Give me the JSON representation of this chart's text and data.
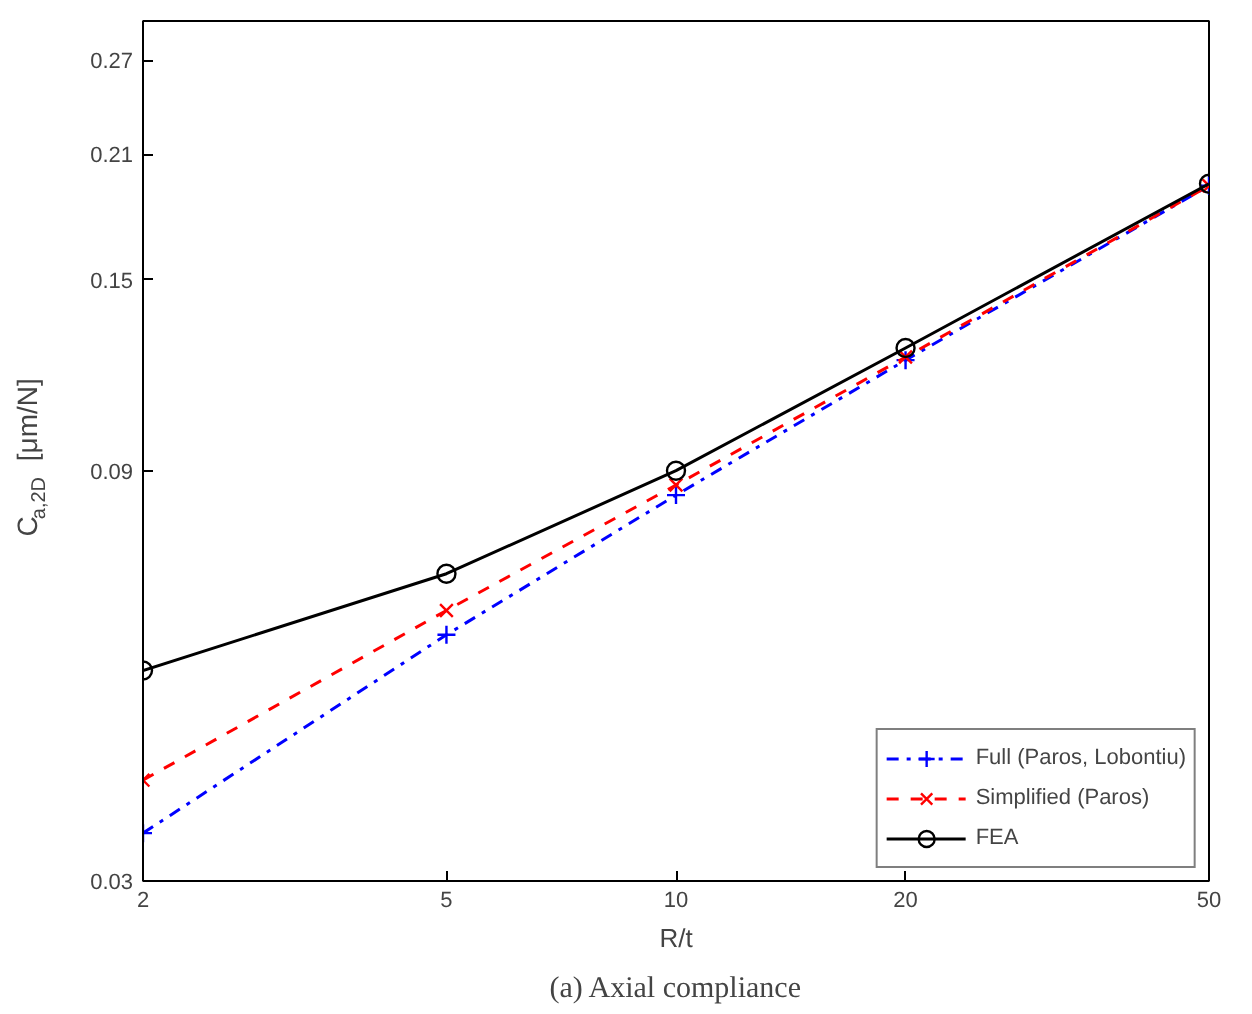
{
  "chart_data": {
    "type": "line",
    "xlabel": "R/t",
    "ylabel": "C$_{a,2D}$ [μm/N]",
    "x": [
      2,
      5,
      10,
      20,
      50
    ],
    "series": [
      {
        "name": "Full (Paros, Lobontiu)",
        "color": "#0000ff",
        "values": [
          0.0341,
          0.058,
          0.0843,
          0.121,
          0.193
        ],
        "marker": "cross",
        "line_style": "dashdot"
      },
      {
        "name": "Simplified (Paros)",
        "color": "#ff0000",
        "values": [
          0.0393,
          0.0619,
          0.0866,
          0.122,
          0.193
        ],
        "marker": "x",
        "line_style": "dashed"
      },
      {
        "name": "FEA",
        "color": "#000000",
        "values": [
          0.0527,
          0.0683,
          0.09,
          0.125,
          0.194
        ],
        "marker": "circle",
        "line_style": "solid"
      }
    ],
    "log": "xy",
    "xlim": [
      2,
      50
    ],
    "ylim": [
      0.03,
      0.3
    ],
    "xticks": [
      2,
      5,
      10,
      20,
      50
    ],
    "yticks": [
      0.03,
      0.09,
      0.15,
      0.21,
      0.27
    ],
    "grid": false,
    "legend": "bottom right",
    "annotations": [
      "(a) Axial compliance"
    ]
  }
}
